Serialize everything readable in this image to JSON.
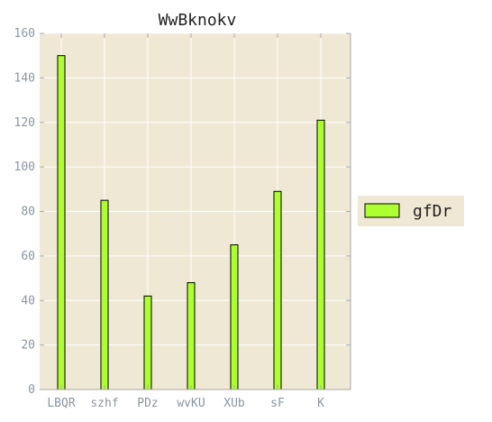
{
  "chart_data": {
    "type": "bar",
    "title": "WwBknokv",
    "xlabel": "",
    "ylabel": "",
    "categories": [
      "LBQR",
      "szhf",
      "PDz",
      "wvKU",
      "XUb",
      "sF",
      "K"
    ],
    "series": [
      {
        "name": "gfDr",
        "values": [
          150,
          85,
          42,
          48,
          65,
          89,
          121
        ],
        "color": "#adff2f"
      }
    ],
    "ylim": [
      0,
      160
    ],
    "yticks": [
      0,
      20,
      40,
      60,
      80,
      100,
      120,
      140,
      160
    ],
    "grid": true,
    "legend_position": "right",
    "colors": {
      "plot_background": "#efe8d5",
      "grid": "#ffffff",
      "bar_edge": "#000000",
      "tick_label": "#8a96a3",
      "legend_background": "#efe8d5"
    }
  }
}
